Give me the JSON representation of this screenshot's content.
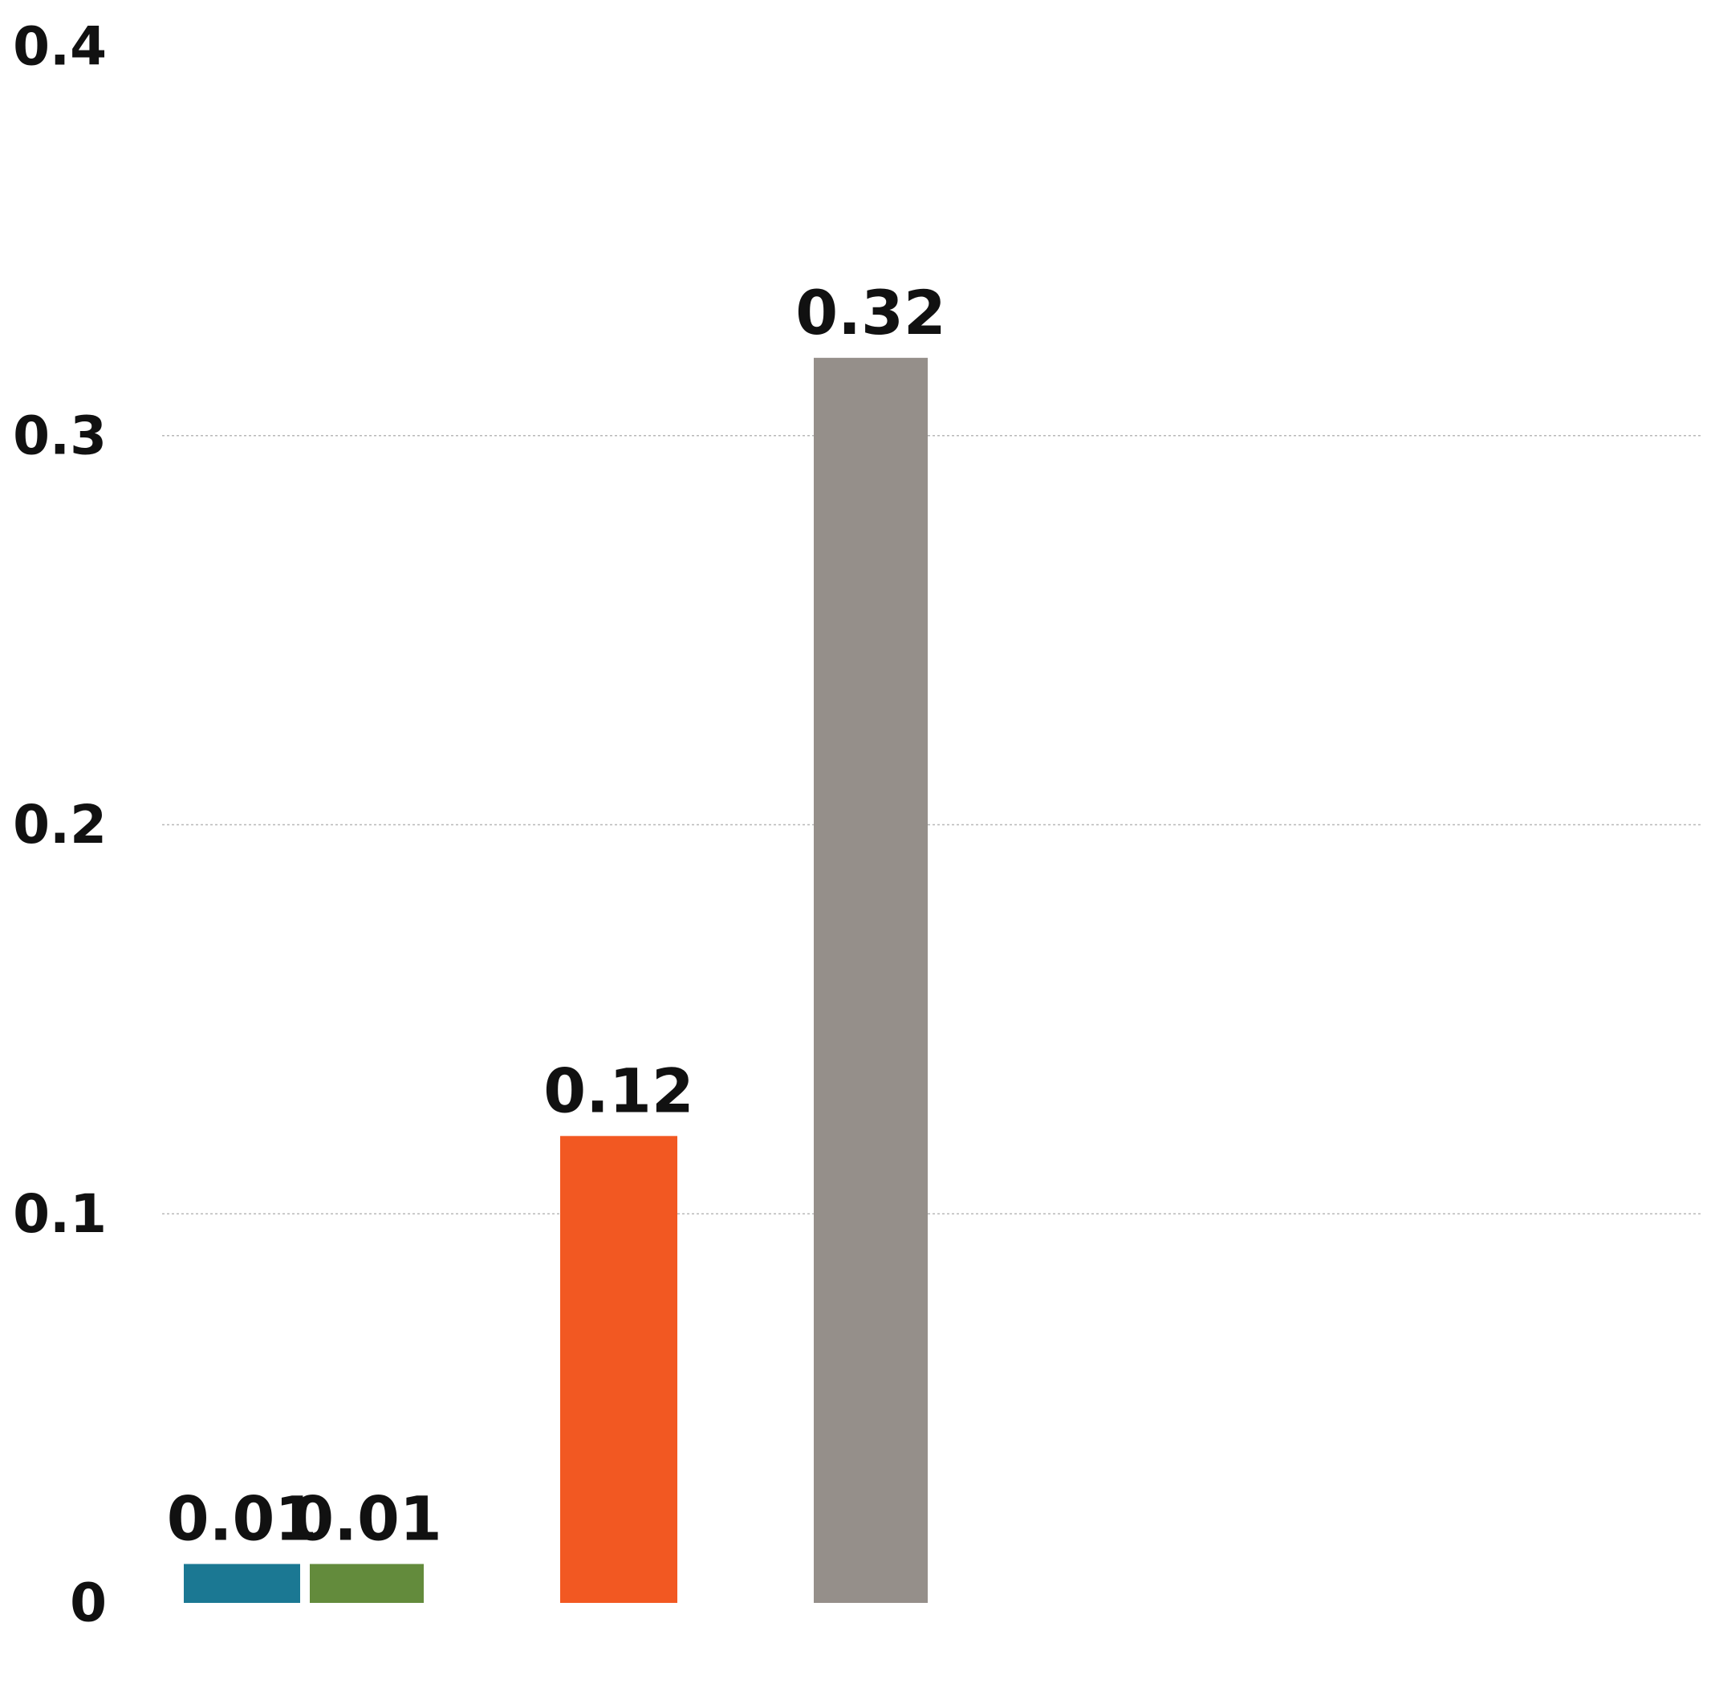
{
  "chart_data": {
    "type": "bar",
    "categories": [
      "",
      "",
      "",
      ""
    ],
    "values": [
      0.01,
      0.01,
      0.12,
      0.32
    ],
    "data_labels": [
      "0.01",
      "0.01",
      "0.12",
      "0.32"
    ],
    "colors": [
      "#1b7893",
      "#638b3c",
      "#f25822",
      "#958f8a"
    ],
    "title": "",
    "xlabel": "",
    "ylabel": "",
    "ylim": [
      0,
      0.4
    ],
    "yticks": [
      0,
      0.1,
      0.2,
      0.3,
      0.4
    ],
    "ytick_labels": [
      "0",
      "0.1",
      "0.2",
      "0.3",
      "0.4"
    ],
    "grid": true,
    "legend": "none"
  }
}
